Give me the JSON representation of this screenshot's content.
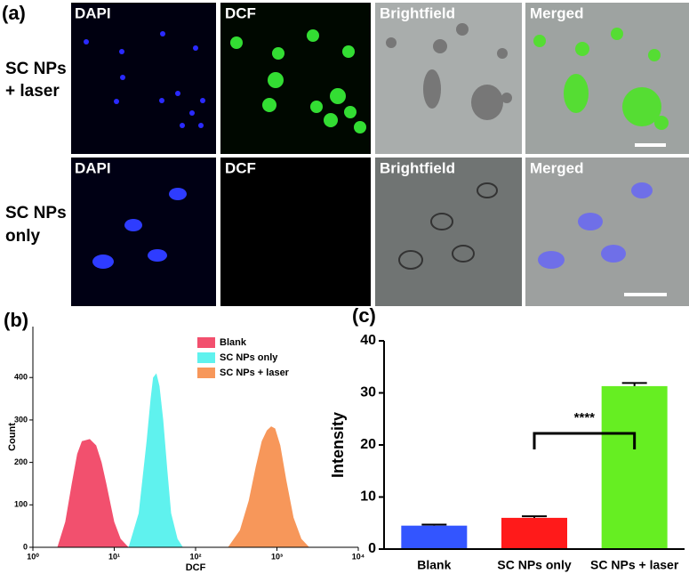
{
  "figure_a": {
    "panel_label": "(a)",
    "rows": [
      {
        "label_lines": [
          "SC NPs",
          "+ laser"
        ]
      },
      {
        "label_lines": [
          "SC NPs",
          "only"
        ]
      }
    ],
    "columns": [
      "DAPI",
      "DCF",
      "Brightfield",
      "Merged"
    ]
  },
  "chart_data": [
    {
      "type": "area",
      "panel_label": "(b)",
      "xlabel": "DCF",
      "ylabel": "Count",
      "xscale": "log",
      "xlim": [
        1,
        10000
      ],
      "xticks": [
        {
          "value": 1,
          "label": "10⁰"
        },
        {
          "value": 10,
          "label": "10¹"
        },
        {
          "value": 100,
          "label": "10²"
        },
        {
          "value": 1000,
          "label": "10³"
        },
        {
          "value": 10000,
          "label": "10⁴"
        }
      ],
      "ylim": [
        0,
        520
      ],
      "yticks": [
        0,
        100,
        200,
        300,
        400
      ],
      "legend": "top-right",
      "series": [
        {
          "name": "Blank",
          "color": "#f2506e",
          "x": [
            2,
            2.5,
            3,
            3.5,
            4,
            5,
            6,
            7,
            8,
            10,
            12,
            15
          ],
          "values": [
            0,
            60,
            150,
            220,
            250,
            255,
            240,
            200,
            150,
            60,
            20,
            0
          ]
        },
        {
          "name": "SC NPs only",
          "color": "#5ff2ee",
          "x": [
            15,
            20,
            25,
            28,
            30,
            33,
            36,
            40,
            45,
            50,
            60,
            70
          ],
          "values": [
            0,
            80,
            250,
            350,
            400,
            410,
            380,
            300,
            180,
            80,
            20,
            0
          ]
        },
        {
          "name": "SC NPs + laser",
          "color": "#f7975a",
          "x": [
            250,
            350,
            450,
            550,
            650,
            750,
            850,
            950,
            1100,
            1300,
            1600,
            2000,
            2500
          ],
          "values": [
            0,
            40,
            110,
            190,
            250,
            275,
            285,
            280,
            240,
            160,
            70,
            20,
            0
          ]
        }
      ]
    },
    {
      "type": "bar",
      "panel_label": "(c)",
      "ylabel": "Intensity",
      "categories": [
        "Blank",
        "SC NPs only",
        "SC NPs + laser"
      ],
      "values": [
        4.5,
        6.0,
        31.3
      ],
      "errors": [
        0.2,
        0.3,
        0.6
      ],
      "colors": [
        "#3355ff",
        "#ff1a1a",
        "#66ee22"
      ],
      "ylim": [
        0,
        40
      ],
      "yticks": [
        0,
        10,
        20,
        30,
        40
      ],
      "annotation": "****"
    }
  ]
}
